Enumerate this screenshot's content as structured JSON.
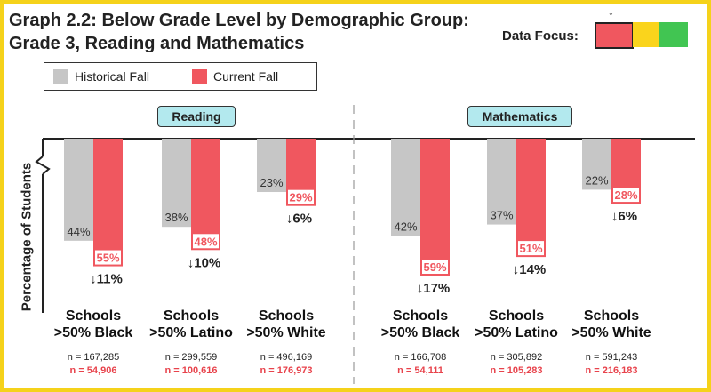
{
  "title_line1": "Graph 2.2: Below Grade Level by Demographic Group:",
  "title_line2": "Grade 3, Reading and Mathematics",
  "data_focus": {
    "label": "Data Focus:",
    "arrow": "↓",
    "colors": [
      "#f0575f",
      "#fad41c",
      "#41c552"
    ]
  },
  "legend": {
    "historical": "Historical Fall",
    "current": "Current Fall"
  },
  "colors": {
    "historical": "#c6c6c6",
    "current": "#f0575f",
    "diff_text": "#222222"
  },
  "chart_data": {
    "type": "bar",
    "ylabel": "Percentage of Students",
    "panels": [
      {
        "name": "Reading",
        "groups": [
          {
            "line1": "Schools",
            "line2": ">50% Black",
            "historical": 44,
            "current": 55,
            "hist_label": "44%",
            "cur_label": "55%",
            "diff": "↓11%",
            "n_hist": "n = 167,285",
            "n_cur": "n = 54,906"
          },
          {
            "line1": "Schools",
            "line2": ">50% Latino",
            "historical": 38,
            "current": 48,
            "hist_label": "38%",
            "cur_label": "48%",
            "diff": "↓10%",
            "n_hist": "n = 299,559",
            "n_cur": "n = 100,616"
          },
          {
            "line1": "Schools",
            "line2": ">50% White",
            "historical": 23,
            "current": 29,
            "hist_label": "23%",
            "cur_label": "29%",
            "diff": "↓6%",
            "n_hist": "n = 496,169",
            "n_cur": "n = 176,973"
          }
        ]
      },
      {
        "name": "Mathematics",
        "groups": [
          {
            "line1": "Schools",
            "line2": ">50% Black",
            "historical": 42,
            "current": 59,
            "hist_label": "42%",
            "cur_label": "59%",
            "diff": "↓17%",
            "n_hist": "n = 166,708",
            "n_cur": "n = 54,111"
          },
          {
            "line1": "Schools",
            "line2": ">50% Latino",
            "historical": 37,
            "current": 51,
            "hist_label": "37%",
            "cur_label": "51%",
            "diff": "↓14%",
            "n_hist": "n = 305,892",
            "n_cur": "n = 105,283"
          },
          {
            "line1": "Schools",
            "line2": ">50% White",
            "historical": 22,
            "current": 28,
            "hist_label": "22%",
            "cur_label": "28%",
            "diff": "↓6%",
            "n_hist": "n = 591,243",
            "n_cur": "n = 216,183"
          }
        ]
      }
    ]
  }
}
